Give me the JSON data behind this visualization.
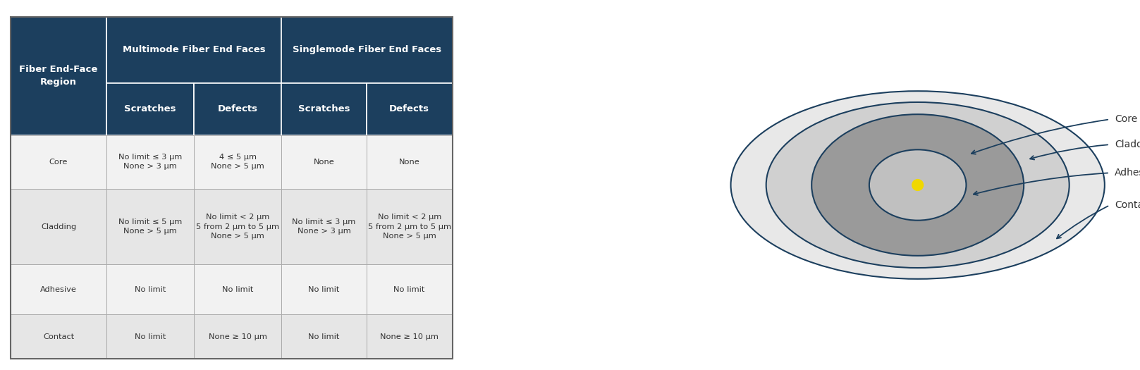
{
  "header_bg": "#1c3f5e",
  "header_fg": "#ffffff",
  "border_color": "#aaaaaa",
  "text_color": "#333333",
  "col_starts": [
    0.015,
    0.148,
    0.27,
    0.392,
    0.51
  ],
  "col_ends": [
    0.148,
    0.27,
    0.392,
    0.51,
    0.63
  ],
  "row_tops": [
    0.955,
    0.775,
    0.635,
    0.49,
    0.285,
    0.15,
    0.03
  ],
  "row_colors": [
    "#f2f2f2",
    "#e6e6e6",
    "#f2f2f2",
    "#e6e6e6"
  ],
  "rows": [
    {
      "region": "Core",
      "mm_scratches": "No limit ≤ 3 μm\nNone > 3 μm",
      "mm_defects": "4 ≤ 5 μm\nNone > 5 μm",
      "sm_scratches": "None",
      "sm_defects": "None"
    },
    {
      "region": "Cladding",
      "mm_scratches": "No limit ≤ 5 μm\nNone > 5 μm",
      "mm_defects": "No limit < 2 μm\n5 from 2 μm to 5 μm\nNone > 5 μm",
      "sm_scratches": "No limit ≤ 3 μm\nNone > 3 μm",
      "sm_defects": "No limit < 2 μm\n5 from 2 μm to 5 μm\nNone > 5 μm"
    },
    {
      "region": "Adhesive",
      "mm_scratches": "No limit",
      "mm_defects": "No limit",
      "sm_scratches": "No limit",
      "sm_defects": "No limit"
    },
    {
      "region": "Contact",
      "mm_scratches": "No limit",
      "mm_defects": "None ≥ 10 μm",
      "sm_scratches": "No limit",
      "sm_defects": "None ≥ 10 μm"
    }
  ],
  "diagram": {
    "outer_color": "#e8e8e8",
    "contact_color": "#d0d0d0",
    "cladding_color": "#9a9a9a",
    "adhesive_color": "#c0c0c0",
    "core_dot_color": "#f0d800",
    "ring_edge_color": "#1c3f5e",
    "label_color": "#333333",
    "labels": [
      "Core",
      "Cladding",
      "Adhesive",
      "Contact"
    ]
  }
}
